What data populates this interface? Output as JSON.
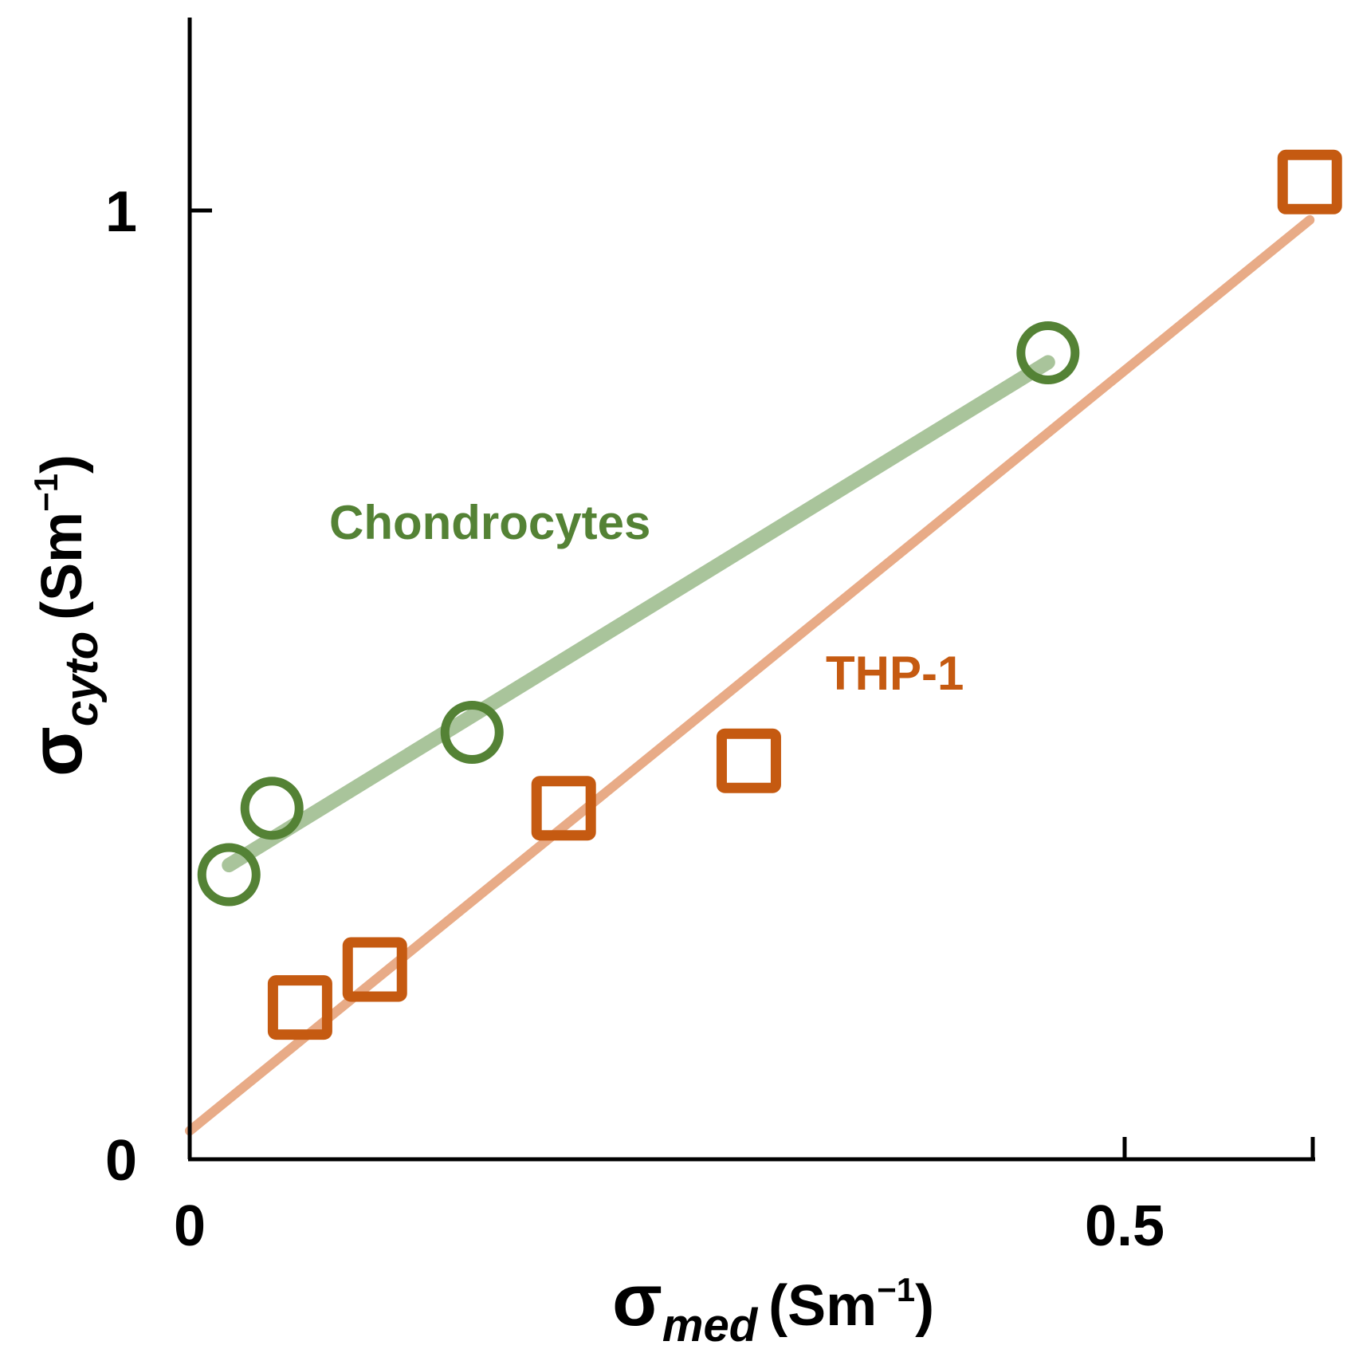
{
  "chart_data": {
    "type": "scatter",
    "title": "",
    "xlabel": {
      "symbol": "σ",
      "subscript": "med",
      "unit": "(Sm",
      "exponent": "−1",
      "close": ")"
    },
    "ylabel": {
      "symbol": "σ",
      "subscript": "cyto",
      "unit": "(Sm",
      "exponent": "−1",
      "close": ")"
    },
    "xlim": [
      0,
      0.6
    ],
    "ylim": [
      0,
      1.2
    ],
    "xticks": [
      {
        "value": 0,
        "label": "0"
      },
      {
        "value": 0.5,
        "label": "0.5"
      }
    ],
    "yticks": [
      {
        "value": 0,
        "label": "0"
      },
      {
        "value": 1,
        "label": "1"
      }
    ],
    "grid": false,
    "series": [
      {
        "name": "Chondrocytes",
        "marker": "circle",
        "color": "#548235",
        "fit_color": "#a9c49b",
        "points": [
          [
            0.021,
            0.3
          ],
          [
            0.044,
            0.37
          ],
          [
            0.151,
            0.45
          ],
          [
            0.459,
            0.85
          ]
        ],
        "fit": [
          [
            0.021,
            0.31
          ],
          [
            0.459,
            0.84
          ]
        ]
      },
      {
        "name": "THP-1",
        "marker": "square",
        "color": "#c55a11",
        "fit_color": "#e8ab87",
        "points": [
          [
            0.059,
            0.16
          ],
          [
            0.099,
            0.2
          ],
          [
            0.2,
            0.37
          ],
          [
            0.299,
            0.42
          ],
          [
            0.599,
            1.03
          ]
        ],
        "fit": [
          [
            0.0,
            0.03
          ],
          [
            0.599,
            0.99
          ]
        ]
      }
    ]
  }
}
